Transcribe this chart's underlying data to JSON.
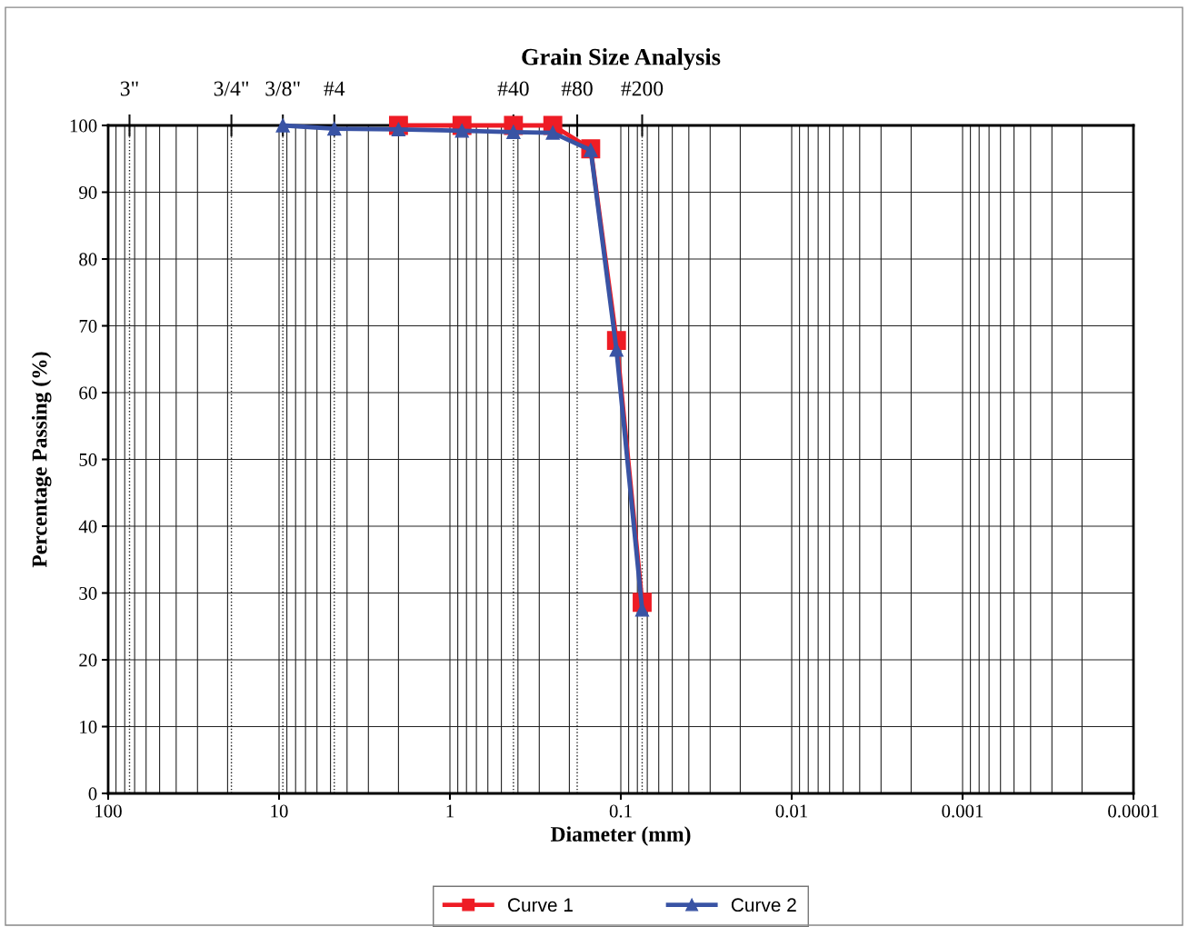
{
  "chart_data": {
    "type": "line",
    "title": "Grain Size Analysis",
    "xlabel": "Diameter (mm)",
    "ylabel": "Percentage Passing (%)",
    "log": "x",
    "xlim": [
      100,
      0.0001
    ],
    "xticks": [
      100,
      10,
      1,
      0.1,
      0.01,
      0.001,
      0.0001
    ],
    "ylim": [
      0,
      100
    ],
    "yticks": [
      0,
      10,
      20,
      30,
      40,
      50,
      60,
      70,
      80,
      90,
      100
    ],
    "grid": true,
    "legend": "bottom",
    "line_style": "solid",
    "series": [
      {
        "name": "Curve 1",
        "color": "#ee1c25",
        "marker": "square",
        "x": [
          2.0,
          0.85,
          0.425,
          0.25,
          0.15,
          0.106,
          0.075
        ],
        "values": [
          100,
          100,
          100,
          100,
          96.5,
          67.8,
          28.6
        ]
      },
      {
        "name": "Curve 2",
        "color": "#3953a4",
        "marker": "triangle",
        "x": [
          9.5,
          4.75,
          2.0,
          0.85,
          0.425,
          0.25,
          0.15,
          0.106,
          0.075
        ],
        "values": [
          100,
          99.5,
          99.4,
          99.2,
          99.0,
          98.9,
          96.3,
          66.4,
          27.5
        ]
      }
    ],
    "ref_lines": [
      {
        "axis": "x",
        "value": 75,
        "line_style": "dotted"
      },
      {
        "axis": "x",
        "value": 19,
        "line_style": "dotted"
      },
      {
        "axis": "x",
        "value": 9.5,
        "line_style": "dotted"
      },
      {
        "axis": "x",
        "value": 4.75,
        "line_style": "dotted"
      },
      {
        "axis": "x",
        "value": 0.425,
        "line_style": "dotted"
      },
      {
        "axis": "x",
        "value": 0.18,
        "line_style": "dotted"
      },
      {
        "axis": "x",
        "value": 0.075,
        "line_style": "dotted"
      }
    ],
    "annotations": [
      {
        "text": "3\"",
        "x": 75,
        "y": 100
      },
      {
        "text": "3/4\"",
        "x": 19,
        "y": 100
      },
      {
        "text": "3/8\"",
        "x": 9.5,
        "y": 100
      },
      {
        "text": "#4",
        "x": 4.75,
        "y": 100
      },
      {
        "text": "#40",
        "x": 0.425,
        "y": 100
      },
      {
        "text": "#80",
        "x": 0.18,
        "y": 100
      },
      {
        "text": "#200",
        "x": 0.075,
        "y": 100
      }
    ]
  }
}
